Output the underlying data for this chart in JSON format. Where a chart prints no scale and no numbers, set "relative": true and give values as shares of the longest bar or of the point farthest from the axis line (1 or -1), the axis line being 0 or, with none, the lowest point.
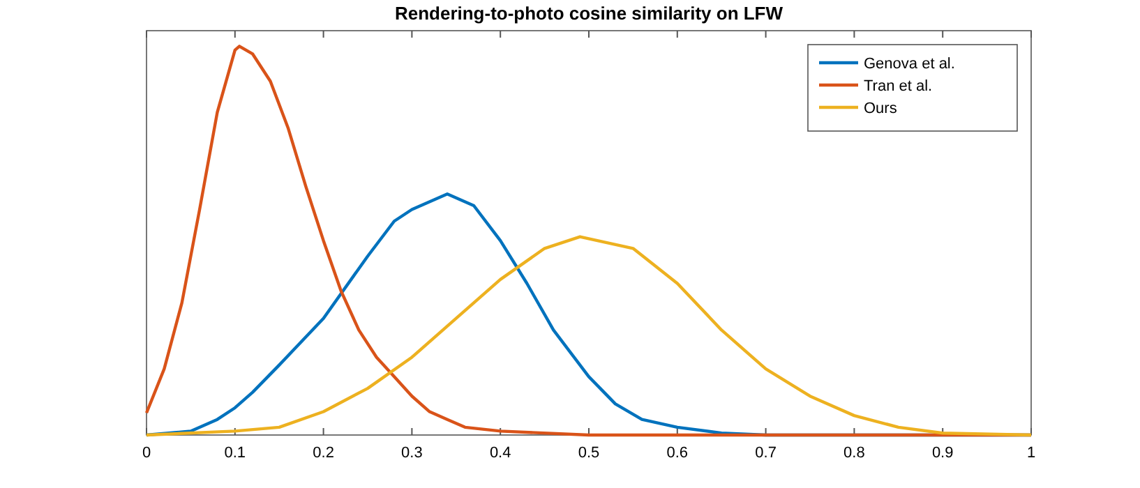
{
  "chart_data": {
    "type": "line",
    "title": "Rendering-to-photo cosine similarity on LFW",
    "relative": true,
    "xlim": [
      0,
      1
    ],
    "xticks": [
      0,
      0.1,
      0.2,
      0.3,
      0.4,
      0.5,
      0.6,
      0.7,
      0.8,
      0.9,
      1
    ],
    "legend": "top right",
    "grid": false,
    "series": [
      {
        "name": "Genova et al.",
        "color": "#0072bd",
        "x": [
          0,
          0.05,
          0.08,
          0.1,
          0.12,
          0.15,
          0.2,
          0.25,
          0.28,
          0.3,
          0.34,
          0.37,
          0.4,
          0.43,
          0.46,
          0.5,
          0.53,
          0.56,
          0.6,
          0.65,
          0.7,
          1
        ],
        "values": [
          0,
          0.01,
          0.04,
          0.07,
          0.11,
          0.18,
          0.3,
          0.46,
          0.55,
          0.58,
          0.62,
          0.59,
          0.5,
          0.39,
          0.27,
          0.15,
          0.08,
          0.04,
          0.02,
          0.005,
          0,
          0
        ]
      },
      {
        "name": "Tran et al.",
        "color": "#d95319",
        "x": [
          0,
          0.02,
          0.04,
          0.06,
          0.08,
          0.1,
          0.105,
          0.12,
          0.14,
          0.16,
          0.18,
          0.2,
          0.22,
          0.24,
          0.26,
          0.28,
          0.3,
          0.32,
          0.34,
          0.36,
          0.4,
          0.5,
          1
        ],
        "values": [
          0.057,
          0.17,
          0.34,
          0.58,
          0.83,
          0.99,
          1,
          0.98,
          0.91,
          0.79,
          0.64,
          0.5,
          0.37,
          0.27,
          0.2,
          0.15,
          0.1,
          0.06,
          0.04,
          0.02,
          0.01,
          0,
          0
        ]
      },
      {
        "name": "Ours",
        "color": "#edb120",
        "x": [
          0,
          0.1,
          0.15,
          0.2,
          0.25,
          0.3,
          0.35,
          0.4,
          0.45,
          0.49,
          0.55,
          0.6,
          0.65,
          0.7,
          0.75,
          0.8,
          0.85,
          0.9,
          1
        ],
        "values": [
          0,
          0.01,
          0.02,
          0.06,
          0.12,
          0.2,
          0.3,
          0.4,
          0.48,
          0.51,
          0.48,
          0.39,
          0.27,
          0.17,
          0.1,
          0.05,
          0.02,
          0.005,
          0
        ]
      }
    ]
  }
}
